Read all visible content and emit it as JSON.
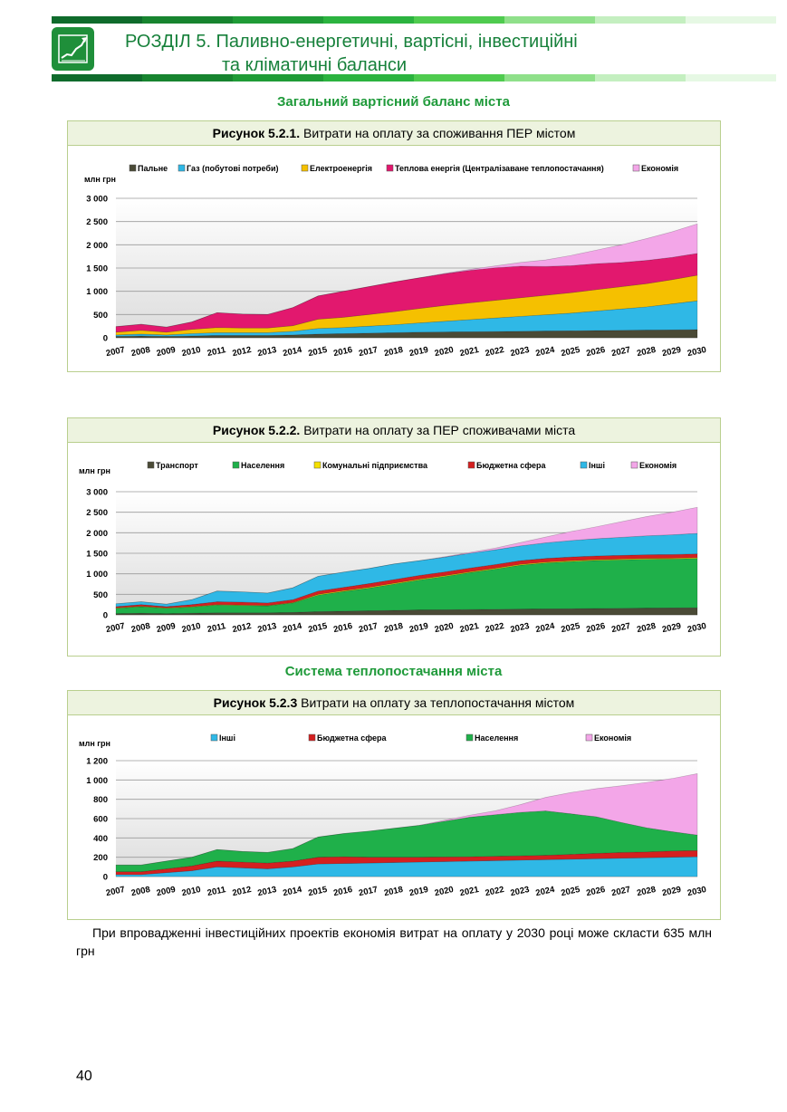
{
  "header": {
    "title_line1": "РОЗДІЛ 5.  Паливно-енергетичні,  вартісні,  інвестиційні",
    "title_line2": "та  кліматичні  баланси",
    "bar_colors": [
      "#0f6b2c",
      "#17842f",
      "#1f9b36",
      "#2bb33f",
      "#4fcb4f",
      "#8fe08a",
      "#c4efc0",
      "#e6f8e4"
    ]
  },
  "section1_title": "Загальний вартісний баланс міста",
  "section2_title": "Система теплопостачання міста",
  "figures": [
    {
      "caption_bold": "Рисунок 5.2.1.",
      "caption_rest": " Витрати на оплату за споживання ПЕР містом"
    },
    {
      "caption_bold": "Рисунок 5.2.2.",
      "caption_rest": "  Витрати на оплату за ПЕР споживачами міста"
    },
    {
      "caption_bold": "Рисунок 5.2.3",
      "caption_rest": " Витрати на оплату за теплопостачання містом"
    }
  ],
  "chart_data": [
    {
      "type": "area",
      "ylabel": "млн грн",
      "ylim": [
        0,
        3000
      ],
      "yticks": [
        0,
        500,
        1000,
        1500,
        2000,
        2500,
        3000
      ],
      "ytick_labels": [
        "0",
        "500",
        "1 000",
        "1 500",
        "2 000",
        "2 500",
        "3 000"
      ],
      "grid": true,
      "legend_placement": "top",
      "categories": [
        "2007",
        "2008",
        "2009",
        "2010",
        "2011",
        "2012",
        "2013",
        "2014",
        "2015",
        "2016",
        "2017",
        "2018",
        "2019",
        "2020",
        "2021",
        "2022",
        "2023",
        "2024",
        "2025",
        "2026",
        "2027",
        "2028",
        "2029",
        "2030"
      ],
      "series": [
        {
          "name": "Пальне",
          "color": "#4a4a36",
          "values": [
            30,
            40,
            30,
            40,
            50,
            50,
            50,
            60,
            80,
            90,
            100,
            110,
            120,
            125,
            130,
            135,
            140,
            145,
            150,
            155,
            160,
            165,
            170,
            175
          ]
        },
        {
          "name": "Газ (побутові потреби)",
          "color": "#2fb8e6",
          "values": [
            30,
            40,
            30,
            50,
            60,
            60,
            60,
            80,
            120,
            130,
            150,
            170,
            200,
            230,
            260,
            290,
            320,
            350,
            380,
            420,
            460,
            500,
            560,
            620
          ]
        },
        {
          "name": "Електроенергія",
          "color": "#f5c000",
          "values": [
            60,
            80,
            60,
            90,
            110,
            100,
            100,
            120,
            200,
            220,
            250,
            280,
            310,
            340,
            360,
            380,
            400,
            420,
            440,
            460,
            480,
            500,
            520,
            550
          ]
        },
        {
          "name": "Теплова енергія (Централізаване теплопостачання)",
          "color": "#e2186e",
          "values": [
            120,
            130,
            110,
            160,
            320,
            300,
            290,
            390,
            500,
            560,
            600,
            640,
            660,
            680,
            700,
            700,
            680,
            620,
            580,
            560,
            520,
            500,
            480,
            470
          ]
        },
        {
          "name": "Економія",
          "color": "#f3a6e8",
          "values": [
            0,
            0,
            0,
            0,
            0,
            0,
            0,
            0,
            0,
            0,
            0,
            0,
            0,
            10,
            20,
            40,
            80,
            140,
            220,
            290,
            380,
            470,
            550,
            635
          ]
        }
      ]
    },
    {
      "type": "area",
      "ylabel": "млн грн",
      "ylim": [
        0,
        3000
      ],
      "yticks": [
        0,
        500,
        1000,
        1500,
        2000,
        2500,
        3000
      ],
      "ytick_labels": [
        "0",
        "500",
        "1 000",
        "1 500",
        "2 000",
        "2 500",
        "3 000"
      ],
      "grid": true,
      "legend_placement": "top",
      "categories": [
        "2007",
        "2008",
        "2009",
        "2010",
        "2011",
        "2012",
        "2013",
        "2014",
        "2015",
        "2016",
        "2017",
        "2018",
        "2019",
        "2020",
        "2021",
        "2022",
        "2023",
        "2024",
        "2025",
        "2026",
        "2027",
        "2028",
        "2029",
        "2030"
      ],
      "series": [
        {
          "name": "Транспорт",
          "color": "#4a4a36",
          "values": [
            30,
            40,
            30,
            40,
            50,
            50,
            50,
            60,
            80,
            90,
            100,
            110,
            120,
            125,
            130,
            135,
            140,
            145,
            150,
            155,
            160,
            165,
            170,
            175
          ]
        },
        {
          "name": "Населення",
          "color": "#1fb04a",
          "values": [
            130,
            160,
            130,
            150,
            190,
            180,
            170,
            230,
            400,
            480,
            550,
            640,
            730,
            810,
            900,
            980,
            1070,
            1120,
            1150,
            1170,
            1180,
            1190,
            1190,
            1200
          ]
        },
        {
          "name": "Комунальні підприємства",
          "color": "#f5e000",
          "values": [
            10,
            10,
            10,
            10,
            10,
            10,
            10,
            10,
            20,
            20,
            20,
            20,
            20,
            20,
            20,
            20,
            20,
            20,
            20,
            20,
            20,
            20,
            20,
            20
          ]
        },
        {
          "name": "Бюджетна сфера",
          "color": "#d42020",
          "values": [
            30,
            40,
            30,
            50,
            70,
            70,
            60,
            70,
            80,
            80,
            90,
            90,
            90,
            90,
            90,
            90,
            90,
            90,
            90,
            90,
            90,
            90,
            90,
            90
          ]
        },
        {
          "name": "Інші",
          "color": "#2fb8e6",
          "values": [
            70,
            70,
            60,
            120,
            260,
            250,
            240,
            290,
            360,
            370,
            370,
            380,
            360,
            360,
            360,
            360,
            360,
            380,
            400,
            420,
            440,
            460,
            480,
            500
          ]
        },
        {
          "name": "Економія",
          "color": "#f3a6e8",
          "values": [
            0,
            0,
            0,
            0,
            0,
            0,
            0,
            0,
            0,
            0,
            0,
            0,
            0,
            10,
            20,
            40,
            80,
            140,
            220,
            290,
            380,
            470,
            550,
            635
          ]
        }
      ]
    },
    {
      "type": "area",
      "ylabel": "млн грн",
      "ylim": [
        0,
        1200
      ],
      "yticks": [
        0,
        200,
        400,
        600,
        800,
        1000,
        1200
      ],
      "ytick_labels": [
        "0",
        "200",
        "400",
        "600",
        "800",
        "1 000",
        "1 200"
      ],
      "grid": true,
      "legend_placement": "top",
      "categories": [
        "2007",
        "2008",
        "2009",
        "2010",
        "2011",
        "2012",
        "2013",
        "2014",
        "2015",
        "2016",
        "2017",
        "2018",
        "2019",
        "2020",
        "2021",
        "2022",
        "2023",
        "2024",
        "2025",
        "2026",
        "2027",
        "2028",
        "2029",
        "2030"
      ],
      "series": [
        {
          "name": "Інші",
          "color": "#2fb8e6",
          "values": [
            20,
            20,
            40,
            60,
            100,
            90,
            80,
            100,
            130,
            135,
            140,
            145,
            150,
            155,
            160,
            165,
            170,
            175,
            180,
            185,
            190,
            195,
            200,
            205
          ]
        },
        {
          "name": "Бюджетна сфера",
          "color": "#d42020",
          "values": [
            30,
            30,
            40,
            50,
            60,
            60,
            60,
            60,
            70,
            70,
            60,
            55,
            50,
            48,
            45,
            45,
            45,
            45,
            50,
            55,
            60,
            60,
            65,
            65
          ]
        },
        {
          "name": "Населення",
          "color": "#1fb04a",
          "values": [
            70,
            70,
            80,
            90,
            120,
            110,
            110,
            130,
            210,
            240,
            270,
            300,
            330,
            370,
            410,
            430,
            450,
            460,
            420,
            380,
            310,
            250,
            200,
            160
          ]
        },
        {
          "name": "Економія",
          "color": "#f3a6e8",
          "values": [
            0,
            0,
            0,
            0,
            0,
            0,
            0,
            0,
            0,
            0,
            0,
            0,
            0,
            10,
            20,
            40,
            80,
            140,
            220,
            290,
            380,
            470,
            550,
            635
          ]
        }
      ]
    }
  ],
  "body_text": "При впровадженні інвестиційних проектів економія витрат на оплату у 2030 році може скласти 635 млн грн",
  "page_number": "40"
}
